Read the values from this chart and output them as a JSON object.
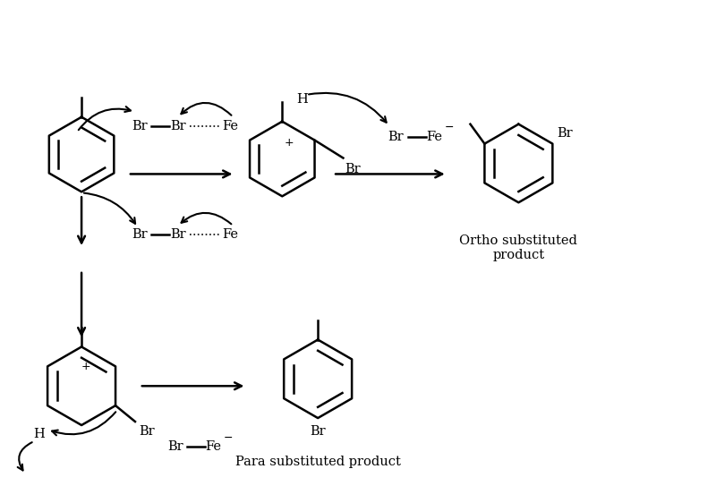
{
  "background": "#ffffff",
  "text_color": "#000000",
  "line_width": 1.8,
  "font_size": 10.5,
  "ortho_label": "Ortho substituted\nproduct",
  "para_label": "Para substituted product",
  "figsize": [
    8.0,
    5.62
  ],
  "dpi": 100,
  "xlim": [
    0,
    8.0
  ],
  "ylim": [
    0,
    5.62
  ]
}
